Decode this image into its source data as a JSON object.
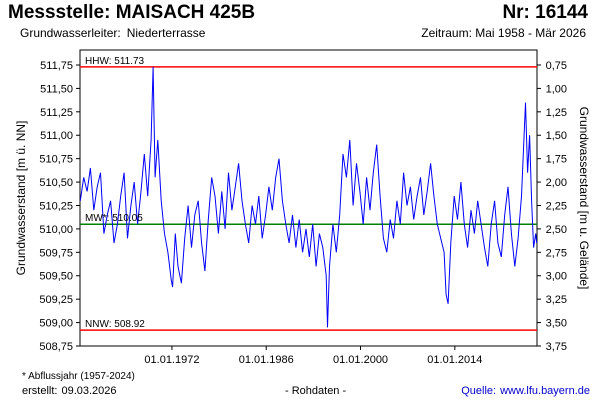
{
  "header": {
    "title": "Messstelle: MAISACH 425B",
    "number": "Nr: 16144",
    "aquifer_label": "Grundwasserleiter:",
    "aquifer_value": "Niederterrasse",
    "period": "Zeitraum: Mai 1958 - Mär 2026"
  },
  "footer": {
    "footnote": "* Abflussjahr (1957-2024)",
    "created_label": "erstellt:",
    "created_value": "09.03.2026",
    "data_type": "- Rohdaten -",
    "source_label": "Quelle:",
    "source_value": "www.lfu.bayern.de"
  },
  "chart_data": {
    "type": "line",
    "ylabel_left": "Grundwasserstand [m ü. NN]",
    "ylabel_right": "Grundwasserstand [m u. Gelände]",
    "ylim": [
      508.75,
      511.91
    ],
    "y_ticks_left": [
      "511,75",
      "511,50",
      "511,25",
      "511,00",
      "510,75",
      "510,50",
      "510,25",
      "510,00",
      "509,75",
      "509,50",
      "509,25",
      "509,00",
      "508,75"
    ],
    "y_ticks_left_values": [
      511.75,
      511.5,
      511.25,
      511.0,
      510.75,
      510.5,
      510.25,
      510.0,
      509.75,
      509.5,
      509.25,
      509.0,
      508.75
    ],
    "y_ticks_right": [
      "0,75",
      "1,00",
      "1,25",
      "1,50",
      "1,75",
      "2,00",
      "2,25",
      "2,50",
      "2,75",
      "3,00",
      "3,25",
      "3,50",
      "3,75"
    ],
    "ground_level": 512.5,
    "x_ticks": [
      "01.01.1972",
      "01.01.1986",
      "01.01.2000",
      "01.01.2014"
    ],
    "x_tick_values": [
      1972.0,
      1986.0,
      2000.0,
      2014.0
    ],
    "xlim": [
      1958.35,
      2026.2
    ],
    "reference_lines": [
      {
        "name": "HHW",
        "label": "HHW: 511.73",
        "value": 511.73,
        "color": "#ff0000"
      },
      {
        "name": "MW",
        "label": "MW*: 510.05",
        "value": 510.05,
        "color": "#008000"
      },
      {
        "name": "NNW",
        "label": "NNW: 508.92",
        "value": 508.92,
        "color": "#ff0000"
      }
    ],
    "series": [
      {
        "color": "#0000ff",
        "points": [
          [
            1958.4,
            510.3
          ],
          [
            1958.9,
            510.55
          ],
          [
            1959.4,
            510.4
          ],
          [
            1959.9,
            510.65
          ],
          [
            1960.4,
            510.2
          ],
          [
            1960.9,
            510.45
          ],
          [
            1961.4,
            510.6
          ],
          [
            1961.9,
            509.95
          ],
          [
            1962.4,
            510.15
          ],
          [
            1962.9,
            510.3
          ],
          [
            1963.4,
            509.85
          ],
          [
            1963.9,
            510.05
          ],
          [
            1964.4,
            510.35
          ],
          [
            1964.9,
            510.6
          ],
          [
            1965.4,
            509.9
          ],
          [
            1965.9,
            510.25
          ],
          [
            1966.4,
            510.5
          ],
          [
            1966.9,
            510.05
          ],
          [
            1967.4,
            510.4
          ],
          [
            1967.9,
            510.8
          ],
          [
            1968.4,
            510.35
          ],
          [
            1968.9,
            510.95
          ],
          [
            1969.2,
            511.73
          ],
          [
            1969.5,
            510.55
          ],
          [
            1969.9,
            510.95
          ],
          [
            1970.4,
            510.3
          ],
          [
            1970.9,
            509.95
          ],
          [
            1971.4,
            509.75
          ],
          [
            1971.9,
            509.45
          ],
          [
            1972.1,
            509.38
          ],
          [
            1972.5,
            509.95
          ],
          [
            1972.9,
            509.6
          ],
          [
            1973.4,
            509.42
          ],
          [
            1973.9,
            509.9
          ],
          [
            1974.4,
            510.25
          ],
          [
            1974.9,
            509.8
          ],
          [
            1975.4,
            510.15
          ],
          [
            1975.9,
            510.3
          ],
          [
            1976.4,
            509.85
          ],
          [
            1976.9,
            509.55
          ],
          [
            1977.4,
            510.1
          ],
          [
            1977.9,
            510.55
          ],
          [
            1978.4,
            510.35
          ],
          [
            1978.9,
            509.95
          ],
          [
            1979.4,
            510.4
          ],
          [
            1979.9,
            510.0
          ],
          [
            1980.4,
            510.6
          ],
          [
            1980.9,
            510.2
          ],
          [
            1981.4,
            510.45
          ],
          [
            1981.9,
            510.7
          ],
          [
            1982.4,
            510.3
          ],
          [
            1982.9,
            510.05
          ],
          [
            1983.4,
            509.85
          ],
          [
            1983.9,
            510.25
          ],
          [
            1984.4,
            510.05
          ],
          [
            1984.9,
            510.35
          ],
          [
            1985.4,
            509.9
          ],
          [
            1985.9,
            510.15
          ],
          [
            1986.4,
            510.45
          ],
          [
            1986.9,
            510.2
          ],
          [
            1987.4,
            510.55
          ],
          [
            1987.9,
            510.75
          ],
          [
            1988.4,
            510.3
          ],
          [
            1988.9,
            510.05
          ],
          [
            1989.4,
            509.85
          ],
          [
            1989.9,
            510.15
          ],
          [
            1990.4,
            509.8
          ],
          [
            1990.9,
            510.1
          ],
          [
            1991.4,
            509.75
          ],
          [
            1991.9,
            510.0
          ],
          [
            1992.4,
            509.7
          ],
          [
            1992.9,
            510.05
          ],
          [
            1993.4,
            509.6
          ],
          [
            1993.9,
            509.95
          ],
          [
            1994.4,
            509.8
          ],
          [
            1994.9,
            509.5
          ],
          [
            1995.1,
            508.95
          ],
          [
            1995.4,
            509.6
          ],
          [
            1995.9,
            510.05
          ],
          [
            1996.4,
            509.75
          ],
          [
            1996.9,
            510.15
          ],
          [
            1997.4,
            510.8
          ],
          [
            1997.9,
            510.55
          ],
          [
            1998.4,
            510.95
          ],
          [
            1998.9,
            510.25
          ],
          [
            1999.4,
            510.7
          ],
          [
            1999.9,
            510.4
          ],
          [
            2000.4,
            510.05
          ],
          [
            2000.9,
            510.55
          ],
          [
            2001.4,
            510.2
          ],
          [
            2001.9,
            510.6
          ],
          [
            2002.4,
            510.9
          ],
          [
            2002.9,
            510.35
          ],
          [
            2003.4,
            509.9
          ],
          [
            2003.9,
            509.75
          ],
          [
            2004.4,
            510.1
          ],
          [
            2004.9,
            509.9
          ],
          [
            2005.4,
            510.3
          ],
          [
            2005.9,
            510.05
          ],
          [
            2006.4,
            510.6
          ],
          [
            2006.9,
            510.25
          ],
          [
            2007.4,
            510.45
          ],
          [
            2007.9,
            510.1
          ],
          [
            2008.4,
            510.35
          ],
          [
            2008.9,
            510.55
          ],
          [
            2009.4,
            510.15
          ],
          [
            2009.9,
            510.4
          ],
          [
            2010.4,
            510.7
          ],
          [
            2010.9,
            510.35
          ],
          [
            2011.4,
            510.05
          ],
          [
            2011.9,
            509.9
          ],
          [
            2012.4,
            509.75
          ],
          [
            2012.7,
            509.3
          ],
          [
            2013.0,
            509.2
          ],
          [
            2013.4,
            509.85
          ],
          [
            2013.9,
            510.35
          ],
          [
            2014.4,
            510.1
          ],
          [
            2014.9,
            510.5
          ],
          [
            2015.4,
            510.05
          ],
          [
            2015.9,
            509.8
          ],
          [
            2016.4,
            510.2
          ],
          [
            2016.9,
            509.95
          ],
          [
            2017.4,
            510.3
          ],
          [
            2017.9,
            510.05
          ],
          [
            2018.4,
            509.8
          ],
          [
            2018.9,
            509.6
          ],
          [
            2019.4,
            510.05
          ],
          [
            2019.9,
            510.3
          ],
          [
            2020.4,
            509.85
          ],
          [
            2020.9,
            509.7
          ],
          [
            2021.4,
            510.15
          ],
          [
            2021.9,
            510.45
          ],
          [
            2022.4,
            509.95
          ],
          [
            2022.9,
            509.6
          ],
          [
            2023.4,
            509.9
          ],
          [
            2023.9,
            510.35
          ],
          [
            2024.2,
            510.85
          ],
          [
            2024.5,
            511.35
          ],
          [
            2024.8,
            510.6
          ],
          [
            2025.1,
            511.0
          ],
          [
            2025.4,
            510.3
          ],
          [
            2025.7,
            509.8
          ],
          [
            2026.0,
            509.95
          ],
          [
            2026.15,
            509.85
          ]
        ]
      }
    ]
  }
}
